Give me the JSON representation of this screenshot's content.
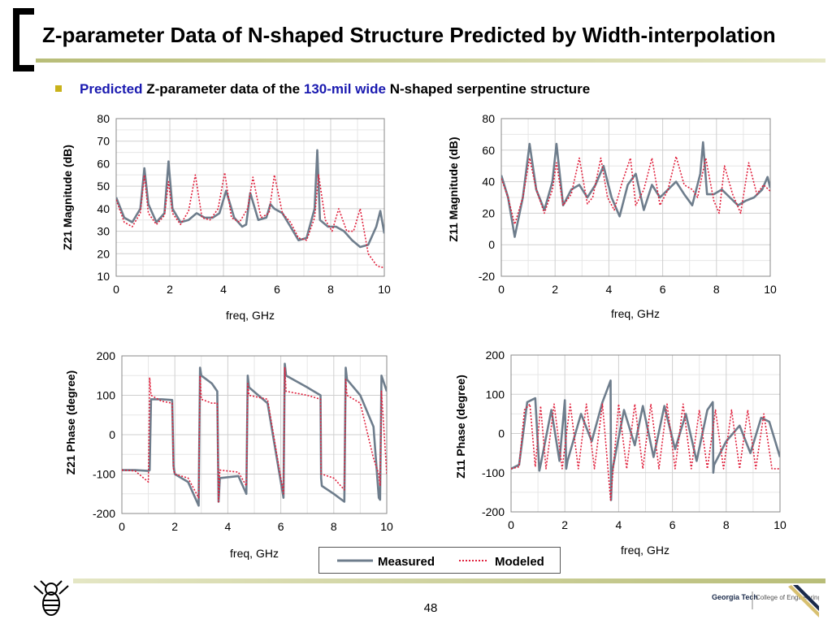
{
  "slide": {
    "title": "Z-parameter Data of N-shaped Structure Predicted by Width-interpolation",
    "bullet": {
      "part1": "Predicted",
      "part2": " Z-parameter data of the ",
      "part3": "130-mil wide",
      "part4": " N-shaped serpentine structure"
    },
    "page_number": "48",
    "logo_text_tech": "Georgia Tech",
    "logo_text_college": "College of Engineering"
  },
  "legend": {
    "measured": "Measured",
    "modeled": "Modeled"
  },
  "colors": {
    "measured": "#6e7d8c",
    "modeled": "#e0203c",
    "accent": "#1a1ab0"
  },
  "chart_data": [
    {
      "id": "z21-mag",
      "type": "line",
      "xlabel": "freq, GHz",
      "ylabel": "Z21 Magnitude (dB)",
      "xlim": [
        0,
        10
      ],
      "ylim": [
        10,
        80
      ],
      "xticks": [
        0,
        2,
        4,
        6,
        8,
        10
      ],
      "yticks": [
        10,
        20,
        30,
        40,
        50,
        60,
        70,
        80
      ],
      "grid": true,
      "series": [
        {
          "name": "Measured",
          "style": "solid",
          "x": [
            0,
            0.3,
            0.6,
            0.9,
            1.05,
            1.2,
            1.5,
            1.8,
            1.95,
            2.1,
            2.4,
            2.7,
            3.0,
            3.3,
            3.6,
            3.85,
            4.1,
            4.4,
            4.7,
            4.85,
            5.0,
            5.3,
            5.6,
            5.75,
            5.9,
            6.2,
            6.5,
            6.8,
            7.1,
            7.4,
            7.5,
            7.6,
            7.9,
            8.2,
            8.5,
            8.8,
            9.1,
            9.4,
            9.7,
            9.85,
            10
          ],
          "y": [
            45,
            36,
            34,
            40,
            58,
            42,
            34,
            38,
            61,
            40,
            34,
            35,
            38,
            36,
            36,
            38,
            48,
            36,
            32,
            33,
            47,
            35,
            36,
            42,
            40,
            38,
            32,
            26,
            27,
            40,
            66,
            35,
            32,
            32,
            30,
            26,
            23,
            24,
            32,
            39,
            29
          ]
        },
        {
          "name": "Modeled",
          "style": "dotted",
          "x": [
            0,
            0.3,
            0.6,
            0.9,
            1.05,
            1.2,
            1.5,
            1.8,
            1.95,
            2.1,
            2.4,
            2.7,
            2.95,
            3.2,
            3.5,
            3.8,
            4.05,
            4.3,
            4.6,
            4.9,
            5.1,
            5.4,
            5.7,
            5.9,
            6.2,
            6.5,
            6.8,
            7.1,
            7.4,
            7.55,
            7.8,
            8.05,
            8.3,
            8.6,
            8.85,
            9.1,
            9.4,
            9.7,
            9.85,
            10
          ],
          "y": [
            44,
            34,
            32,
            38,
            55,
            38,
            33,
            37,
            52,
            38,
            33,
            39,
            55,
            36,
            35,
            40,
            56,
            36,
            34,
            40,
            54,
            36,
            38,
            55,
            38,
            34,
            27,
            26,
            36,
            55,
            35,
            30,
            40,
            30,
            30,
            40,
            20,
            15,
            14,
            14
          ]
        }
      ]
    },
    {
      "id": "z11-mag",
      "type": "line",
      "xlabel": "freq, GHz",
      "ylabel": "Z11 Magnitude (dB)",
      "xlim": [
        0,
        10
      ],
      "ylim": [
        -20,
        80
      ],
      "xticks": [
        0,
        2,
        4,
        6,
        8,
        10
      ],
      "yticks": [
        -20,
        0,
        20,
        40,
        60,
        80
      ],
      "grid": true,
      "series": [
        {
          "name": "Measured",
          "style": "solid",
          "x": [
            0,
            0.25,
            0.5,
            0.8,
            1.05,
            1.3,
            1.6,
            1.9,
            2.05,
            2.3,
            2.6,
            2.9,
            3.2,
            3.5,
            3.8,
            4.1,
            4.4,
            4.7,
            5.0,
            5.3,
            5.6,
            5.9,
            6.2,
            6.5,
            6.8,
            7.1,
            7.4,
            7.5,
            7.65,
            7.9,
            8.2,
            8.5,
            8.8,
            9.1,
            9.4,
            9.7,
            9.9,
            10
          ],
          "y": [
            44,
            30,
            5,
            30,
            64,
            35,
            22,
            40,
            64,
            25,
            35,
            38,
            30,
            38,
            50,
            30,
            18,
            38,
            45,
            22,
            38,
            30,
            35,
            40,
            32,
            25,
            45,
            65,
            32,
            32,
            35,
            30,
            25,
            28,
            30,
            35,
            43,
            36
          ]
        },
        {
          "name": "Modeled",
          "style": "dotted",
          "x": [
            0,
            0.25,
            0.5,
            0.8,
            1.05,
            1.3,
            1.6,
            1.9,
            2.05,
            2.3,
            2.6,
            2.9,
            3.2,
            3.4,
            3.7,
            3.95,
            4.2,
            4.5,
            4.8,
            5.0,
            5.3,
            5.6,
            5.9,
            6.2,
            6.5,
            6.8,
            7.1,
            7.3,
            7.6,
            7.9,
            8.1,
            8.3,
            8.6,
            8.9,
            9.2,
            9.5,
            9.75,
            10
          ],
          "y": [
            42,
            30,
            13,
            30,
            55,
            35,
            20,
            35,
            52,
            25,
            32,
            55,
            26,
            30,
            55,
            30,
            22,
            40,
            55,
            25,
            35,
            55,
            25,
            35,
            56,
            38,
            35,
            30,
            55,
            28,
            20,
            50,
            32,
            20,
            52,
            32,
            38,
            34
          ]
        }
      ]
    },
    {
      "id": "z21-phase",
      "type": "line",
      "xlabel": "freq, GHz",
      "ylabel": "Z21 Phase (degree)",
      "xlim": [
        0,
        10
      ],
      "ylim": [
        -200,
        200
      ],
      "xticks": [
        0,
        2,
        4,
        6,
        8,
        10
      ],
      "yticks": [
        -200,
        -100,
        0,
        100,
        200
      ],
      "grid": true,
      "series": [
        {
          "name": "Measured",
          "style": "solid",
          "x": [
            0,
            0.5,
            1.0,
            1.05,
            1.1,
            1.5,
            1.9,
            1.95,
            2.0,
            2.5,
            2.9,
            2.95,
            3.0,
            3.4,
            3.6,
            3.65,
            3.7,
            4.4,
            4.7,
            4.75,
            4.8,
            5.5,
            6.1,
            6.15,
            6.2,
            7.0,
            7.5,
            7.52,
            7.55,
            8.0,
            8.4,
            8.45,
            8.5,
            9.0,
            9.5,
            9.7,
            9.75,
            9.8,
            10
          ],
          "y": [
            -90,
            -90,
            -92,
            -90,
            90,
            90,
            88,
            -80,
            -100,
            -120,
            -180,
            170,
            150,
            130,
            110,
            -170,
            -110,
            -105,
            -150,
            150,
            120,
            80,
            -160,
            180,
            150,
            120,
            100,
            -110,
            -130,
            -150,
            -170,
            170,
            140,
            100,
            20,
            -160,
            -165,
            150,
            110
          ]
        },
        {
          "name": "Modeled",
          "style": "dotted",
          "x": [
            0,
            0.5,
            1.0,
            1.05,
            1.1,
            1.5,
            1.9,
            1.95,
            2.0,
            2.5,
            2.9,
            2.95,
            3.0,
            3.4,
            3.6,
            3.65,
            3.7,
            4.4,
            4.7,
            4.75,
            4.8,
            5.5,
            6.1,
            6.15,
            6.2,
            7.0,
            7.5,
            7.52,
            7.55,
            8.0,
            8.4,
            8.45,
            8.5,
            9.0,
            9.5,
            9.7,
            9.75,
            9.8,
            10
          ],
          "y": [
            -90,
            -92,
            -120,
            145,
            100,
            85,
            80,
            -90,
            -100,
            -110,
            -160,
            150,
            90,
            80,
            80,
            -170,
            -90,
            -95,
            -130,
            130,
            100,
            90,
            -150,
            170,
            110,
            100,
            90,
            -100,
            -100,
            -110,
            -140,
            140,
            100,
            80,
            -60,
            -100,
            -130,
            110,
            -100
          ]
        }
      ]
    },
    {
      "id": "z11-phase",
      "type": "line",
      "xlabel": "freq, GHz",
      "ylabel": "Z11 Phase (degree)",
      "xlim": [
        0,
        10
      ],
      "ylim": [
        -200,
        200
      ],
      "xticks": [
        0,
        2,
        4,
        6,
        8,
        10
      ],
      "yticks": [
        -200,
        -100,
        0,
        100,
        200
      ],
      "grid": true,
      "series": [
        {
          "name": "Measured",
          "style": "solid",
          "x": [
            0,
            0.3,
            0.6,
            0.9,
            1.05,
            1.1,
            1.5,
            1.8,
            2.0,
            2.05,
            2.1,
            2.6,
            3.0,
            3.4,
            3.7,
            3.72,
            3.75,
            4.2,
            4.6,
            4.9,
            5.3,
            5.7,
            6.1,
            6.5,
            6.9,
            7.3,
            7.5,
            7.52,
            7.55,
            8.0,
            8.5,
            8.9,
            9.3,
            9.6,
            10
          ],
          "y": [
            -90,
            -80,
            80,
            90,
            -95,
            -80,
            60,
            -70,
            85,
            -90,
            -70,
            50,
            -20,
            80,
            135,
            -170,
            -100,
            60,
            -30,
            70,
            -60,
            70,
            -40,
            50,
            -70,
            60,
            80,
            -100,
            -80,
            -20,
            20,
            -50,
            40,
            30,
            -60
          ]
        },
        {
          "name": "Modeled",
          "style": "dotted",
          "x": [
            0,
            0.3,
            0.5,
            0.7,
            0.9,
            1.1,
            1.3,
            1.6,
            1.9,
            2.2,
            2.5,
            2.8,
            3.1,
            3.4,
            3.7,
            4.0,
            4.3,
            4.6,
            4.9,
            5.2,
            5.5,
            5.8,
            6.1,
            6.4,
            6.7,
            7.0,
            7.3,
            7.6,
            7.9,
            8.2,
            8.5,
            8.8,
            9.1,
            9.4,
            9.7,
            10
          ],
          "y": [
            -90,
            -85,
            60,
            75,
            -85,
            70,
            -90,
            75,
            -90,
            75,
            -90,
            75,
            -90,
            75,
            -170,
            75,
            -90,
            75,
            -90,
            75,
            -90,
            75,
            -90,
            75,
            -90,
            60,
            -90,
            60,
            -90,
            60,
            -90,
            60,
            -90,
            50,
            -90,
            -90
          ]
        }
      ]
    }
  ]
}
